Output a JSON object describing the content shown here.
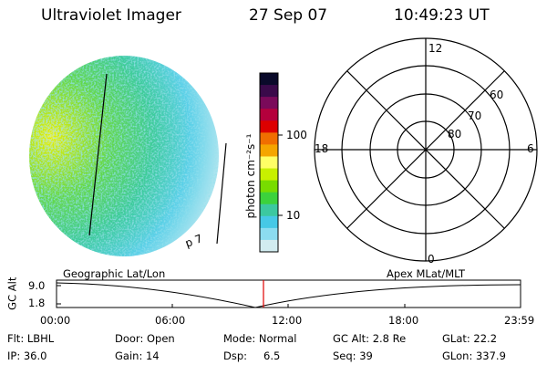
{
  "header": {
    "instrument": "Ultraviolet Imager",
    "date": "27 Sep 07",
    "time": "10:49:23 UT"
  },
  "colorbar": {
    "unit_label": "photon cm⁻²s⁻¹",
    "ticks": [
      "100",
      "10"
    ],
    "colors": [
      "#0a0a2a",
      "#3a0a4a",
      "#7a0a5a",
      "#b4003c",
      "#dc0000",
      "#f06e00",
      "#f5a500",
      "#ffff66",
      "#c8f000",
      "#78dc00",
      "#3cd23c",
      "#3cc8a0",
      "#46c8e6",
      "#8cdcf0",
      "#d2ecf0"
    ]
  },
  "image_panel": {
    "label": "p 7"
  },
  "polar_grid": {
    "mlt_labels": [
      "12",
      "18",
      "6",
      "0"
    ],
    "lat_labels": [
      "60",
      "70",
      "80"
    ]
  },
  "timeline": {
    "ylabel": "GC Alt",
    "yticks": [
      "9.0",
      "1.8"
    ],
    "left_label": "Geographic Lat/Lon",
    "right_label": "Apex MLat/MLT",
    "xticks": [
      "00:00",
      "06:00",
      "12:00",
      "18:00",
      "23:59"
    ],
    "current_marker": "10:49",
    "marker_color": "#e00000"
  },
  "status": {
    "flt": "Flt: LBHL",
    "ip": "IP: 36.0",
    "door": "Door: Open",
    "gain": "Gain: 14",
    "mode": "Mode: Normal",
    "dsp_label": "Dsp:",
    "dsp_value": "6.5",
    "gc_alt": "GC Alt: 2.8 Re",
    "seq": "Seq: 39",
    "glat": "GLat:  22.2",
    "glon": "GLon: 337.9"
  }
}
